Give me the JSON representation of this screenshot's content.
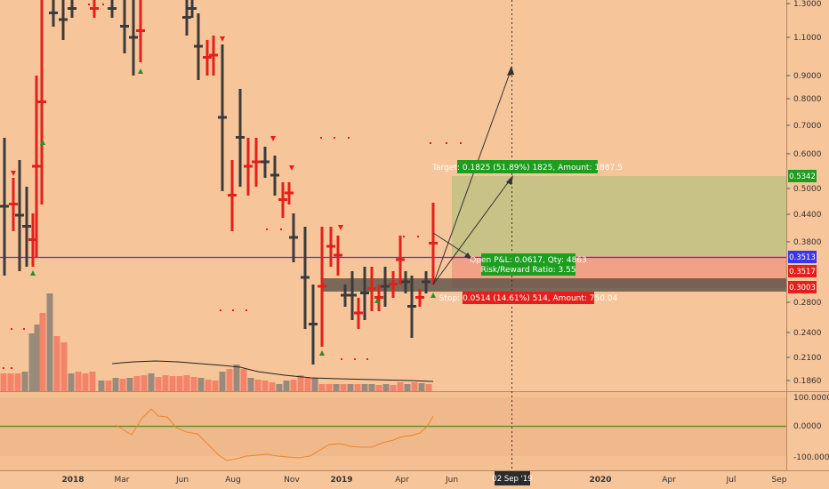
{
  "colors": {
    "background": "#f7c59a",
    "bear": "#e3201b",
    "bull": "#3b3b3b",
    "target_zone": "#c2c184",
    "stop_zone": "#f0a085",
    "blue_line": "#3a36ee",
    "green_label": "#1e9e1e",
    "red_label": "#e3201b",
    "oscillator": "#f0832a",
    "oscillator_zero": "#6b8e23"
  },
  "price_axis": {
    "ticks": [
      "1.3000",
      "1.1000",
      "0.9000",
      "0.8000",
      "0.7000",
      "0.6000",
      "0.5000",
      "0.4400",
      "0.3800",
      "0.2800",
      "0.2400",
      "0.2100",
      "0.1860"
    ],
    "tags": [
      {
        "label": "0.5342",
        "color": "#1e9e1e"
      },
      {
        "label": "0.3513",
        "color": "#3a36ee"
      },
      {
        "label": "0.3517",
        "color": "#e3201b"
      },
      {
        "label": "0.3003",
        "color": "#e3201b"
      }
    ]
  },
  "oscillator_axis": {
    "ticks": [
      "100.0000",
      "0.0000",
      "-100.0000"
    ]
  },
  "time_axis": {
    "labels": [
      "2018",
      "Mar",
      "Jun",
      "Aug",
      "Nov",
      "2019",
      "Apr",
      "Jun",
      "2020",
      "Apr",
      "Jul",
      "Sep"
    ],
    "crosshair_label": "02 Sep '19"
  },
  "position": {
    "target_text": "Target: 0.1825 (51.89%) 1825, Amount: 1887.5",
    "open_pnl_text": "Open P&L: 0.0617, Qty: 4863",
    "risk_reward_text": "Risk/Reward Ratio: 3.55",
    "stop_text": "Stop: 0.0514 (14.61%) 514, Amount: 750.04"
  }
}
